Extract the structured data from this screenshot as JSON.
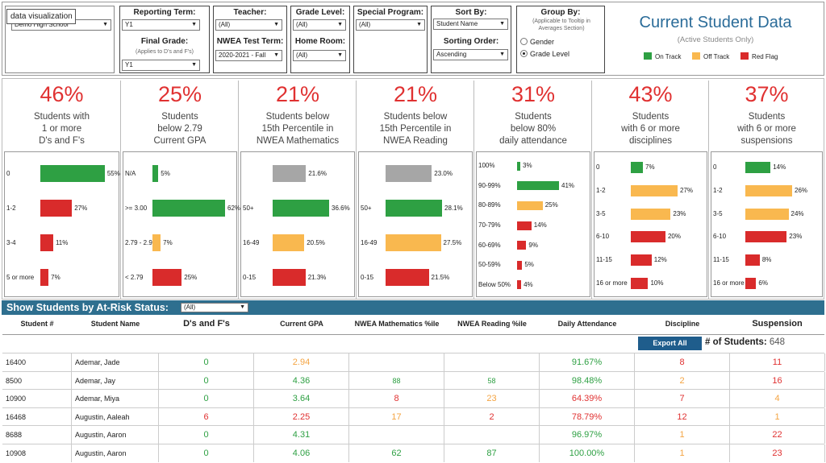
{
  "tooltip": "data visualization",
  "filters": {
    "school": {
      "value": "Demo High School"
    },
    "reporting_term": {
      "label": "Reporting Term:",
      "value": "Y1"
    },
    "final_grade": {
      "label": "Final Grade:",
      "sublabel": "(Applies to D's and F's)",
      "value": "Y1"
    },
    "teacher": {
      "label": "Teacher:",
      "value": "(All)"
    },
    "nwea_term": {
      "label": "NWEA Test Term:",
      "value": "2020-2021 - Fall"
    },
    "grade_level": {
      "label": "Grade Level:",
      "value": "(All)"
    },
    "home_room": {
      "label": "Home Room:",
      "value": "(All)"
    },
    "special_program": {
      "label": "Special Program:",
      "value": "(All)"
    },
    "sort_by": {
      "label": "Sort By:",
      "value": "Student Name"
    },
    "sorting_order": {
      "label": "Sorting Order:",
      "value": "Ascending"
    },
    "group_by": {
      "label": "Group By:",
      "sublabel": "(Applicable to Tooltip in Averages Section)",
      "options": [
        "Gender",
        "Grade Level"
      ],
      "selected": "Grade Level"
    }
  },
  "title": "Current Student Data",
  "subtitle": "(Active Students Only)",
  "legend": [
    {
      "label": "On Track",
      "color": "#2ea043"
    },
    {
      "label": "Off Track",
      "color": "#f9b84f"
    },
    {
      "label": "Red Flag",
      "color": "#d92b2b"
    }
  ],
  "kpis": [
    {
      "pct": "46%",
      "desc": [
        "Students with",
        "1 or more",
        "D's and F's"
      ]
    },
    {
      "pct": "25%",
      "desc": [
        "Students",
        "below 2.79",
        "Current GPA"
      ]
    },
    {
      "pct": "21%",
      "desc": [
        "Students below",
        "15th Percentile in",
        "NWEA Mathematics"
      ]
    },
    {
      "pct": "21%",
      "desc": [
        "Students below",
        "15th Percentile in",
        "NWEA Reading"
      ]
    },
    {
      "pct": "31%",
      "desc": [
        "Students",
        "below 80%",
        "daily attendance"
      ]
    },
    {
      "pct": "43%",
      "desc": [
        "Students",
        "with 6 or more",
        "disciplines"
      ]
    },
    {
      "pct": "37%",
      "desc": [
        "Students",
        "with 6 or more",
        "suspensions"
      ]
    }
  ],
  "chart_data": [
    {
      "type": "bar",
      "categories": [
        "0",
        "1-2",
        "3-4",
        "5 or more"
      ],
      "values": [
        55,
        27,
        11,
        7
      ],
      "labels": [
        "55%",
        "27%",
        "11%",
        "7%"
      ],
      "colors": [
        "#2ea043",
        "#d92b2b",
        "#d92b2b",
        "#d92b2b"
      ]
    },
    {
      "type": "bar",
      "categories": [
        "N/A",
        ">= 3.00",
        "2.79 - 2.99",
        "< 2.79"
      ],
      "values": [
        5,
        62,
        7,
        25
      ],
      "labels": [
        "5%",
        "62%",
        "7%",
        "25%"
      ],
      "colors": [
        "#2ea043",
        "#2ea043",
        "#f9b84f",
        "#d92b2b"
      ]
    },
    {
      "type": "bar",
      "categories": [
        "",
        "50+",
        "16-49",
        "0-15"
      ],
      "values": [
        21.6,
        36.6,
        20.5,
        21.3
      ],
      "labels": [
        "21.6%",
        "36.6%",
        "20.5%",
        "21.3%"
      ],
      "colors": [
        "#a6a6a6",
        "#2ea043",
        "#f9b84f",
        "#d92b2b"
      ]
    },
    {
      "type": "bar",
      "categories": [
        "",
        "50+",
        "16-49",
        "0-15"
      ],
      "values": [
        23.0,
        28.1,
        27.5,
        21.5
      ],
      "labels": [
        "23.0%",
        "28.1%",
        "27.5%",
        "21.5%"
      ],
      "colors": [
        "#a6a6a6",
        "#2ea043",
        "#f9b84f",
        "#d92b2b"
      ]
    },
    {
      "type": "bar",
      "categories": [
        "100%",
        "90-99%",
        "80-89%",
        "70-79%",
        "60-69%",
        "50-59%",
        "Below 50%"
      ],
      "values": [
        3,
        41,
        25,
        14,
        9,
        5,
        4
      ],
      "labels": [
        "3%",
        "41%",
        "25%",
        "14%",
        "9%",
        "5%",
        "4%"
      ],
      "colors": [
        "#2ea043",
        "#2ea043",
        "#f9b84f",
        "#d92b2b",
        "#d92b2b",
        "#d92b2b",
        "#d92b2b"
      ]
    },
    {
      "type": "bar",
      "categories": [
        "0",
        "1-2",
        "3-5",
        "6-10",
        "11-15",
        "16 or more"
      ],
      "values": [
        7,
        27,
        23,
        20,
        12,
        10
      ],
      "labels": [
        "7%",
        "27%",
        "23%",
        "20%",
        "12%",
        "10%"
      ],
      "colors": [
        "#2ea043",
        "#f9b84f",
        "#f9b84f",
        "#d92b2b",
        "#d92b2b",
        "#d92b2b"
      ]
    },
    {
      "type": "bar",
      "categories": [
        "0",
        "1-2",
        "3-5",
        "6-10",
        "11-15",
        "16 or more"
      ],
      "values": [
        14,
        26,
        24,
        23,
        8,
        6
      ],
      "labels": [
        "14%",
        "26%",
        "24%",
        "23%",
        "8%",
        "6%"
      ],
      "colors": [
        "#2ea043",
        "#f9b84f",
        "#f9b84f",
        "#d92b2b",
        "#d92b2b",
        "#d92b2b"
      ]
    }
  ],
  "risk_band": {
    "label": "Show Students by At-Risk Status:",
    "value": "(All)"
  },
  "table": {
    "headers": [
      "Student #",
      "Student Name",
      "D's and F's",
      "Current GPA",
      "NWEA Mathematics %ile",
      "NWEA Reading %ile",
      "Daily Attendance",
      "Discipline",
      "Suspension"
    ],
    "export_label": "Export All",
    "count_label": "# of Students:",
    "count_value": "648",
    "rows": [
      {
        "id": "16400",
        "name": "Ademar, Jade",
        "df": {
          "v": "0",
          "c": "g"
        },
        "gpa": {
          "v": "2.94",
          "c": "o"
        },
        "math": {
          "v": "",
          "c": "g"
        },
        "read": {
          "v": "",
          "c": "g"
        },
        "att": {
          "v": "91.67%",
          "c": "g"
        },
        "disc": {
          "v": "8",
          "c": "r"
        },
        "susp": {
          "v": "11",
          "c": "r"
        }
      },
      {
        "id": "8500",
        "name": "Ademar, Jay",
        "df": {
          "v": "0",
          "c": "g"
        },
        "gpa": {
          "v": "4.36",
          "c": "g"
        },
        "math": {
          "v": "88",
          "c": "g sm"
        },
        "read": {
          "v": "58",
          "c": "g sm"
        },
        "att": {
          "v": "98.48%",
          "c": "g"
        },
        "disc": {
          "v": "2",
          "c": "o"
        },
        "susp": {
          "v": "16",
          "c": "r"
        }
      },
      {
        "id": "10900",
        "name": "Ademar, Miya",
        "df": {
          "v": "0",
          "c": "g"
        },
        "gpa": {
          "v": "3.64",
          "c": "g"
        },
        "math": {
          "v": "8",
          "c": "r"
        },
        "read": {
          "v": "23",
          "c": "o"
        },
        "att": {
          "v": "64.39%",
          "c": "r"
        },
        "disc": {
          "v": "7",
          "c": "r"
        },
        "susp": {
          "v": "4",
          "c": "o"
        }
      },
      {
        "id": "16468",
        "name": "Augustin, Aaleah",
        "df": {
          "v": "6",
          "c": "r"
        },
        "gpa": {
          "v": "2.25",
          "c": "r"
        },
        "math": {
          "v": "17",
          "c": "o"
        },
        "read": {
          "v": "2",
          "c": "r"
        },
        "att": {
          "v": "78.79%",
          "c": "r"
        },
        "disc": {
          "v": "12",
          "c": "r"
        },
        "susp": {
          "v": "1",
          "c": "o"
        }
      },
      {
        "id": "8688",
        "name": "Augustin, Aaron",
        "df": {
          "v": "0",
          "c": "g"
        },
        "gpa": {
          "v": "4.31",
          "c": "g"
        },
        "math": {
          "v": "",
          "c": "g"
        },
        "read": {
          "v": "",
          "c": "g"
        },
        "att": {
          "v": "96.97%",
          "c": "g"
        },
        "disc": {
          "v": "1",
          "c": "o"
        },
        "susp": {
          "v": "22",
          "c": "r"
        }
      },
      {
        "id": "10908",
        "name": "Augustin, Aaron",
        "df": {
          "v": "0",
          "c": "g"
        },
        "gpa": {
          "v": "4.06",
          "c": "g"
        },
        "math": {
          "v": "62",
          "c": "g"
        },
        "read": {
          "v": "87",
          "c": "g"
        },
        "att": {
          "v": "100.00%",
          "c": "g"
        },
        "disc": {
          "v": "1",
          "c": "o"
        },
        "susp": {
          "v": "23",
          "c": "r"
        }
      }
    ]
  }
}
